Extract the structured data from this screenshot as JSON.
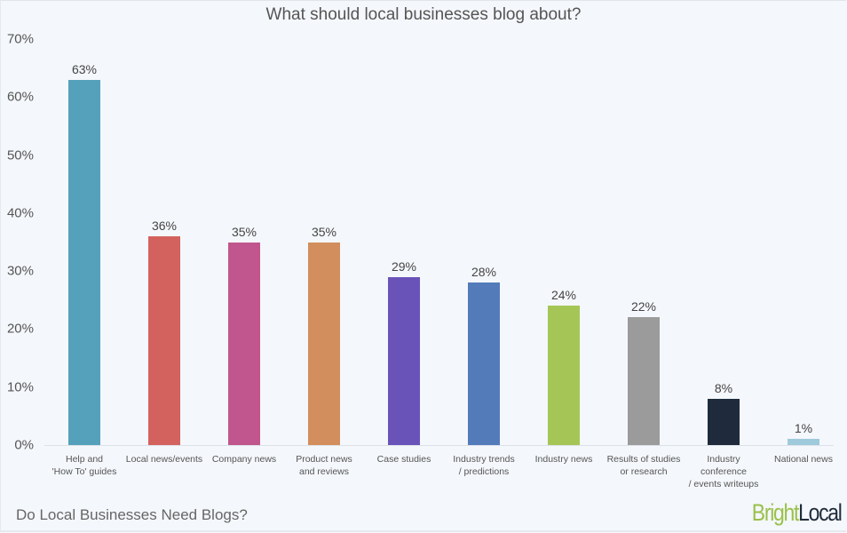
{
  "chart_data": {
    "type": "bar",
    "title": "What should local businesses blog about?",
    "xlabel": "",
    "ylabel": "",
    "ylim": [
      0,
      70
    ],
    "yticks": [
      "0%",
      "10%",
      "20%",
      "30%",
      "40%",
      "50%",
      "60%",
      "70%"
    ],
    "grid": false,
    "legend": "none",
    "categories": [
      "Help and 'How To' guides",
      "Local news/events",
      "Company news",
      "Product news and reviews",
      "Case studies",
      "Industry trends / predictions",
      "Industry news",
      "Results of studies or research",
      "Industry conference / events writeups",
      "National news"
    ],
    "values": [
      63,
      36,
      35,
      35,
      29,
      28,
      24,
      22,
      8,
      1
    ],
    "value_labels": [
      "63%",
      "36%",
      "35%",
      "35%",
      "29%",
      "28%",
      "24%",
      "22%",
      "8%",
      "1%"
    ],
    "colors": [
      "#55a1bb",
      "#d3625f",
      "#c0568d",
      "#d38e5d",
      "#6a53b8",
      "#537bba",
      "#a5c657",
      "#9b9b9b",
      "#1f2b3d",
      "#9fcadb"
    ]
  },
  "labels": {
    "title": "What should local businesses blog about?",
    "footer": "Do Local Businesses Need Blogs?",
    "brand_part1": "Bright",
    "brand_part2": "Local",
    "x_lines": [
      [
        "Help and",
        "'How To' guides"
      ],
      [
        "Local news/events"
      ],
      [
        "Company news"
      ],
      [
        "Product news",
        "and reviews"
      ],
      [
        "Case studies"
      ],
      [
        "Industry trends",
        "/ predictions"
      ],
      [
        "Industry news"
      ],
      [
        "Results of studies",
        "or research"
      ],
      [
        "Industry",
        "conference",
        "/ events writeups"
      ],
      [
        "National news"
      ]
    ]
  }
}
